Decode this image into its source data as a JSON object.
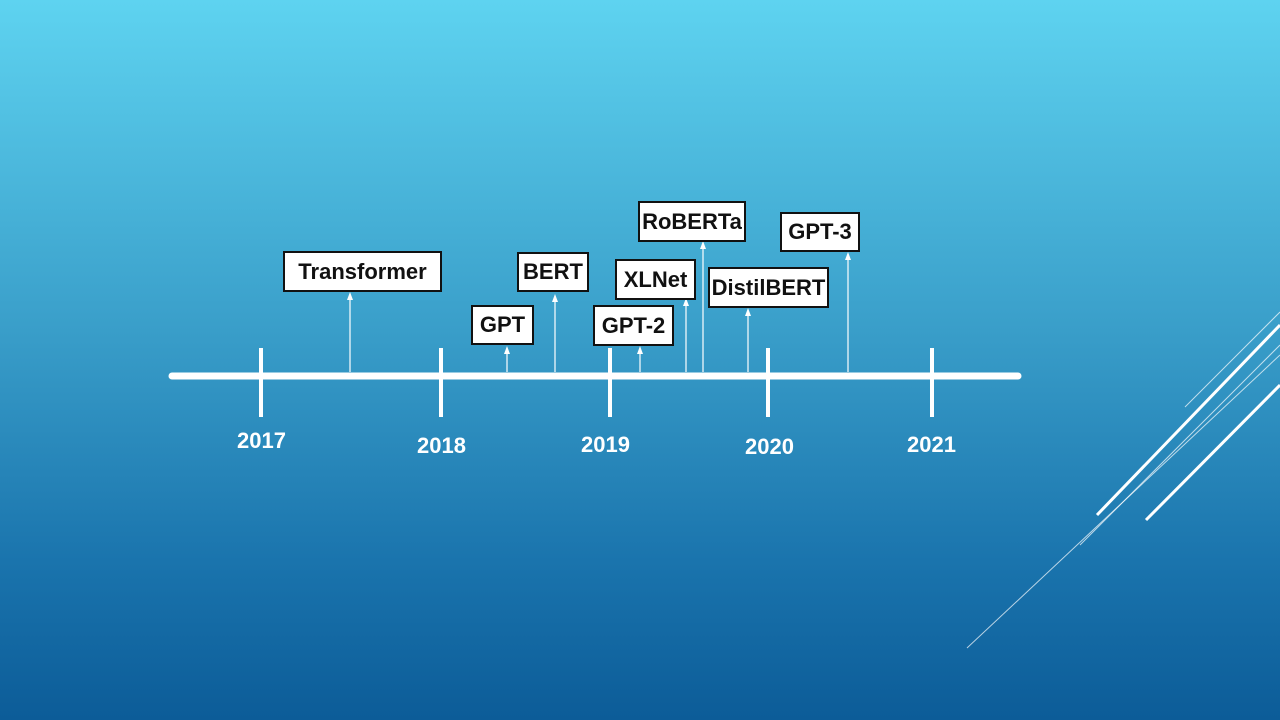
{
  "timeline": {
    "years": [
      "2017",
      "2018",
      "2019",
      "2020",
      "2021"
    ],
    "models": [
      {
        "label": "Transformer"
      },
      {
        "label": "GPT"
      },
      {
        "label": "BERT"
      },
      {
        "label": "GPT-2"
      },
      {
        "label": "XLNet"
      },
      {
        "label": "RoBERTa"
      },
      {
        "label": "DistilBERT"
      },
      {
        "label": "GPT-3"
      }
    ]
  },
  "colors": {
    "background_top": "#5ed3f0",
    "background_bottom": "#0c5c98",
    "line": "#ffffff",
    "box_fill": "#ffffff",
    "box_border": "#111111",
    "box_text": "#111111"
  }
}
